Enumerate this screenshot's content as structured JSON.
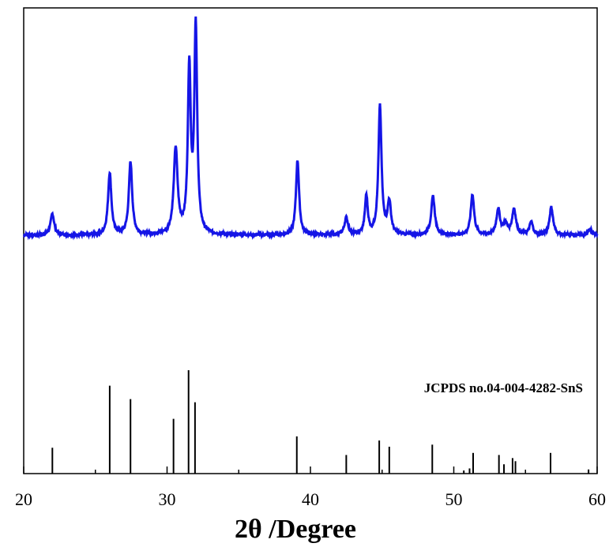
{
  "chart_data": {
    "type": "line",
    "title": "",
    "xlabel": "2θ /Degree",
    "ylabel": "",
    "xlim": [
      20,
      60
    ],
    "x_ticks": [
      20,
      30,
      40,
      50,
      60
    ],
    "x_tick_labels": [
      "20",
      "30",
      "40",
      "50",
      "60"
    ],
    "y_ticks_shown": false,
    "colors": {
      "pattern": "#1515e6",
      "reference": "#000000",
      "axis": "#000000"
    },
    "pattern": {
      "baseline": 0,
      "noise": 0.012,
      "peaks": [
        {
          "x": 22.0,
          "height": 0.1,
          "width": 0.15
        },
        {
          "x": 26.0,
          "height": 0.29,
          "width": 0.14
        },
        {
          "x": 27.45,
          "height": 0.34,
          "width": 0.14
        },
        {
          "x": 30.6,
          "height": 0.4,
          "width": 0.16
        },
        {
          "x": 31.55,
          "height": 0.77,
          "width": 0.12
        },
        {
          "x": 32.0,
          "height": 0.96,
          "width": 0.12
        },
        {
          "x": 39.1,
          "height": 0.35,
          "width": 0.13
        },
        {
          "x": 42.5,
          "height": 0.08,
          "width": 0.15
        },
        {
          "x": 43.9,
          "height": 0.18,
          "width": 0.12
        },
        {
          "x": 44.85,
          "height": 0.6,
          "width": 0.13
        },
        {
          "x": 45.5,
          "height": 0.15,
          "width": 0.14
        },
        {
          "x": 48.55,
          "height": 0.18,
          "width": 0.15
        },
        {
          "x": 51.3,
          "height": 0.19,
          "width": 0.14
        },
        {
          "x": 53.1,
          "height": 0.12,
          "width": 0.15
        },
        {
          "x": 53.6,
          "height": 0.05,
          "width": 0.15
        },
        {
          "x": 54.2,
          "height": 0.12,
          "width": 0.16
        },
        {
          "x": 55.4,
          "height": 0.06,
          "width": 0.14
        },
        {
          "x": 56.8,
          "height": 0.13,
          "width": 0.15
        },
        {
          "x": 59.5,
          "height": 0.03,
          "width": 0.15
        }
      ]
    },
    "reference": {
      "label": "JCPDS no.04-004-4282-SnS",
      "lines": [
        {
          "x": 22.0,
          "intensity": 0.25
        },
        {
          "x": 26.0,
          "intensity": 0.85
        },
        {
          "x": 27.45,
          "intensity": 0.72
        },
        {
          "x": 30.45,
          "intensity": 0.53
        },
        {
          "x": 31.5,
          "intensity": 1.0
        },
        {
          "x": 31.95,
          "intensity": 0.69
        },
        {
          "x": 39.05,
          "intensity": 0.36
        },
        {
          "x": 42.5,
          "intensity": 0.18
        },
        {
          "x": 44.8,
          "intensity": 0.32
        },
        {
          "x": 45.5,
          "intensity": 0.26
        },
        {
          "x": 48.5,
          "intensity": 0.28
        },
        {
          "x": 50.7,
          "intensity": 0.03
        },
        {
          "x": 51.1,
          "intensity": 0.05
        },
        {
          "x": 51.35,
          "intensity": 0.2
        },
        {
          "x": 53.15,
          "intensity": 0.18
        },
        {
          "x": 53.5,
          "intensity": 0.09
        },
        {
          "x": 54.1,
          "intensity": 0.15
        },
        {
          "x": 54.3,
          "intensity": 0.12
        },
        {
          "x": 56.75,
          "intensity": 0.2
        },
        {
          "x": 59.4,
          "intensity": 0.04
        }
      ]
    }
  }
}
